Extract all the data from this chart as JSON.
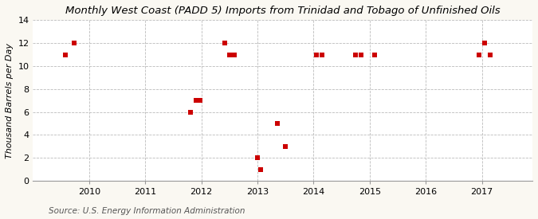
{
  "title": "Monthly West Coast (PADD 5) Imports from Trinidad and Tobago of Unfinished Oils",
  "ylabel": "Thousand Barrels per Day",
  "source": "Source: U.S. Energy Information Administration",
  "background_color": "#faf8f2",
  "plot_bg_color": "#ffffff",
  "marker_color": "#cc0000",
  "marker": "s",
  "marker_size": 4,
  "xlim": [
    2009.0,
    2017.9
  ],
  "ylim": [
    0,
    14
  ],
  "yticks": [
    0,
    2,
    4,
    6,
    8,
    10,
    12,
    14
  ],
  "xticks": [
    2010,
    2011,
    2012,
    2013,
    2014,
    2015,
    2016,
    2017
  ],
  "data_x": [
    2009.58,
    2009.73,
    2011.8,
    2011.9,
    2011.97,
    2012.42,
    2012.5,
    2012.58,
    2013.0,
    2013.05,
    2013.35,
    2013.5,
    2014.05,
    2014.15,
    2014.75,
    2014.85,
    2015.08,
    2016.95,
    2017.05,
    2017.15
  ],
  "data_y": [
    11,
    12,
    6,
    7,
    7,
    12,
    11,
    11,
    2,
    1,
    5,
    3,
    11,
    11,
    11,
    11,
    11,
    11,
    12,
    11
  ],
  "title_fontsize": 9.5,
  "axis_fontsize": 8,
  "source_fontsize": 7.5
}
